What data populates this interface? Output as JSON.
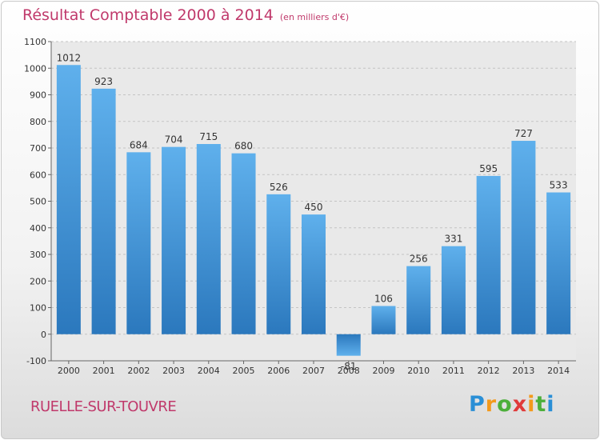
{
  "header": {
    "title": "Résultat Comptable 2000 à 2014",
    "subtitle": "(en milliers d'€)"
  },
  "footer": {
    "place": "RUELLE-SUR-TOUVRE",
    "logo": "Proxiti"
  },
  "colors": {
    "bar": "#3d92d6",
    "title": "#c0396b"
  },
  "chart_data": {
    "type": "bar",
    "title": "Résultat Comptable 2000 à 2014",
    "subtitle": "(en milliers d'€)",
    "categories": [
      "2000",
      "2001",
      "2002",
      "2003",
      "2004",
      "2005",
      "2006",
      "2007",
      "2008",
      "2009",
      "2010",
      "2011",
      "2012",
      "2013",
      "2014"
    ],
    "values": [
      1012,
      923,
      684,
      704,
      715,
      680,
      526,
      450,
      -81,
      106,
      256,
      331,
      595,
      727,
      533
    ],
    "value_labels": [
      "1012",
      "923",
      "684",
      "704",
      "715",
      "680",
      "526",
      "450",
      "-81",
      "106",
      "256",
      "331",
      "595",
      "727",
      "533"
    ],
    "yticks": [
      -100,
      0,
      100,
      200,
      300,
      400,
      500,
      600,
      700,
      800,
      900,
      1000,
      1100
    ],
    "ylim": [
      -100,
      1100
    ],
    "grid": true,
    "legend": "none"
  }
}
